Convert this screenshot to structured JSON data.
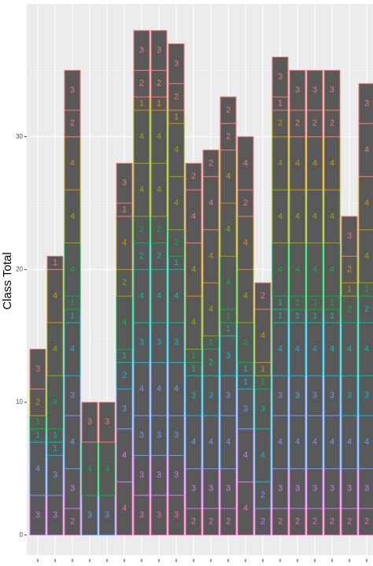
{
  "chart_data": {
    "type": "bar",
    "stacked": true,
    "y_label": "Class Total",
    "categories": [
      null,
      null,
      null,
      null,
      null,
      null,
      null,
      null,
      null,
      null,
      null,
      null,
      null,
      null,
      null,
      null,
      null,
      null,
      null,
      null
    ],
    "stacks": [
      [
        3,
        4,
        1,
        1,
        2,
        3
      ],
      [
        3,
        3,
        1,
        1,
        4,
        4,
        4,
        1
      ],
      [
        2,
        3,
        4,
        3,
        4,
        1,
        1,
        4,
        4,
        4,
        2,
        3
      ],
      [
        3,
        4,
        3
      ],
      [
        3,
        4,
        3
      ],
      [
        4,
        4,
        3,
        2,
        1,
        4,
        2,
        4,
        1,
        3
      ],
      [
        3,
        3,
        3,
        4,
        3,
        4,
        2,
        2,
        4,
        4,
        1,
        2,
        3
      ],
      [
        3,
        3,
        3,
        4,
        3,
        4,
        2,
        2,
        4,
        4,
        1,
        2,
        3
      ],
      [
        3,
        3,
        3,
        4,
        3,
        4,
        1,
        2,
        4,
        4,
        1,
        2,
        3
      ],
      [
        2,
        3,
        4,
        3,
        1,
        1,
        4,
        4,
        4,
        2
      ],
      [
        2,
        3,
        4,
        3,
        2,
        1,
        4,
        4,
        4,
        2
      ],
      [
        2,
        3,
        4,
        3,
        3,
        1,
        1,
        4,
        4,
        4,
        2,
        2
      ],
      [
        4,
        4,
        3,
        1,
        1,
        3,
        4,
        4,
        2,
        4
      ],
      [
        2,
        2,
        4,
        3,
        1,
        1,
        4,
        2
      ],
      [
        2,
        3,
        4,
        3,
        4,
        1,
        1,
        4,
        4,
        4,
        2,
        1,
        3
      ],
      [
        2,
        3,
        4,
        3,
        4,
        1,
        1,
        4,
        4,
        4,
        2,
        3
      ],
      [
        2,
        3,
        4,
        3,
        4,
        1,
        1,
        4,
        4,
        4,
        2,
        3
      ],
      [
        2,
        3,
        4,
        3,
        4,
        1,
        1,
        4,
        4,
        4,
        2,
        3
      ],
      [
        2,
        3,
        4,
        3,
        4,
        2,
        1,
        2,
        3
      ],
      [
        2,
        3,
        4,
        3,
        4,
        2,
        1,
        4,
        4,
        4,
        3
      ]
    ],
    "palette": [
      "#F8766D",
      "#D39200",
      "#93AA00",
      "#00BA38",
      "#00C19F",
      "#00B9E3",
      "#619CFF",
      "#DB72FB",
      "#FF61C3"
    ],
    "bar_fill": "#595959",
    "ylim": [
      -1.5,
      40
    ],
    "yticks": [
      0,
      10,
      20,
      30
    ],
    "grid": true
  }
}
